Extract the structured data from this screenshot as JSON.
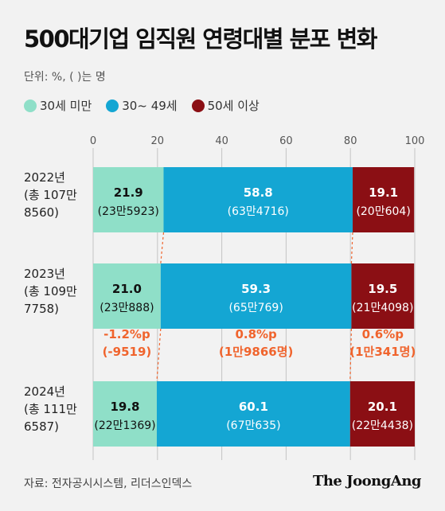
{
  "title": "500대기업 임직원 연령대별 분포 변화",
  "unit_note": "단위: %, ( )는 명",
  "legend": [
    {
      "label": "30세 미만",
      "color": "#8fdfc8"
    },
    {
      "label": "30~ 49세",
      "color": "#14a6d3"
    },
    {
      "label": "50세 이상",
      "color": "#8b0f14"
    }
  ],
  "source": "자료: 전자공시시스템, 리더스인덱스",
  "brand": "The JoongAng",
  "chart_data": {
    "type": "bar",
    "stacked": true,
    "orientation": "horizontal",
    "xlim": [
      0,
      100
    ],
    "x_ticks": [
      "0",
      "20",
      "40",
      "60",
      "80",
      "100"
    ],
    "categories": [
      [
        "2022년",
        "(총 107만",
        "8560)"
      ],
      [
        "2023년",
        "(총 109만",
        "7758)"
      ],
      [
        "2024년",
        "(총 111만",
        "6587)"
      ]
    ],
    "series": [
      {
        "name": "30세 미만",
        "color": "#8fdfc8",
        "values": [
          21.9,
          21.0,
          19.8
        ],
        "value_labels": [
          "21.9",
          "21.0",
          "19.8"
        ],
        "sub_labels": [
          "(23만5923)",
          "(23만888)",
          "(22만1369)"
        ]
      },
      {
        "name": "30~ 49세",
        "color": "#14a6d3",
        "values": [
          58.8,
          59.3,
          60.1
        ],
        "value_labels": [
          "58.8",
          "59.3",
          "60.1"
        ],
        "sub_labels": [
          "(63만4716)",
          "(65만769)",
          "(67만635)"
        ]
      },
      {
        "name": "50세 이상",
        "color": "#8b0f14",
        "values": [
          19.1,
          19.5,
          20.1
        ],
        "value_labels": [
          "19.1",
          "19.5",
          "20.1"
        ],
        "sub_labels": [
          "(20만604)",
          "(21만4098)",
          "(22만4438)"
        ]
      }
    ],
    "changes": [
      {
        "line1": "-1.2%p",
        "line2": "(-9519)"
      },
      {
        "line1": "0.8%p",
        "line2": "(1만9866명)"
      },
      {
        "line1": "0.6%p",
        "line2": "(1만341명)"
      }
    ],
    "change_color": "#f0642d"
  }
}
